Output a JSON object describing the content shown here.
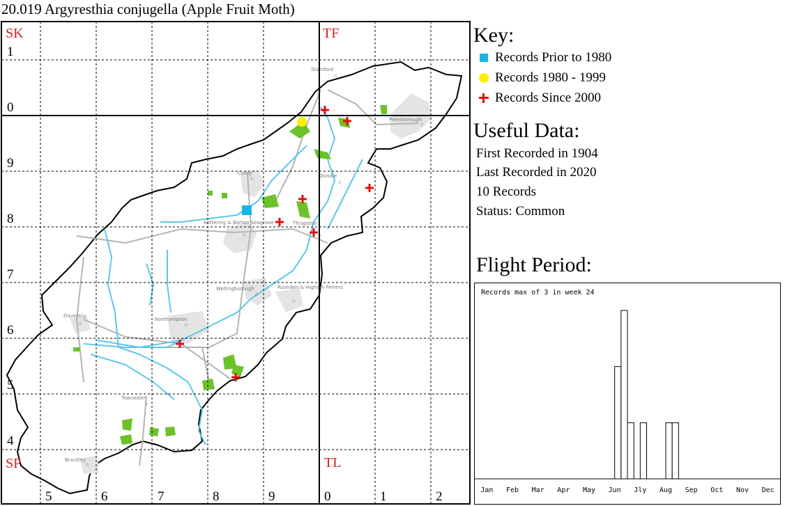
{
  "title": "20.019 Argyresthia conjugella (Apple Fruit Moth)",
  "map": {
    "grid_square_labels": [
      {
        "text": "SK",
        "color": "#cc2222"
      },
      {
        "text": "TF",
        "color": "#cc2222"
      },
      {
        "text": "SP",
        "color": "#cc2222"
      },
      {
        "text": "TL",
        "color": "#cc2222"
      }
    ],
    "northing_labels": [
      "1",
      "0",
      "9",
      "8",
      "7",
      "6",
      "5",
      "4"
    ],
    "easting_labels": [
      "5",
      "6",
      "7",
      "8",
      "9",
      "0",
      "1",
      "2"
    ],
    "places": [
      "Stamford",
      "Peterborough",
      "Corby",
      "Oundle",
      "Kettering & Barton Seagrave",
      "Thrapston",
      "Wellingborough",
      "Rushden & Higham Ferrers",
      "Daventry",
      "Northampton",
      "Towcester",
      "Brackley"
    ],
    "records": [
      {
        "period": "prior-1980",
        "symbol": "blue-square",
        "color": "#19b5e8"
      },
      {
        "period": "1980-1999",
        "symbol": "yellow-dot",
        "color": "#ffee00"
      },
      {
        "period": "since-2000",
        "symbol": "red-cross",
        "color": "#e01010"
      },
      {
        "period": "since-2000",
        "symbol": "red-cross",
        "color": "#e01010"
      },
      {
        "period": "since-2000",
        "symbol": "red-cross",
        "color": "#e01010"
      },
      {
        "period": "since-2000",
        "symbol": "red-cross",
        "color": "#e01010"
      },
      {
        "period": "since-2000",
        "symbol": "red-cross",
        "color": "#e01010"
      },
      {
        "period": "since-2000",
        "symbol": "red-cross",
        "color": "#e01010"
      },
      {
        "period": "since-2000",
        "symbol": "red-cross",
        "color": "#e01010"
      },
      {
        "period": "since-2000",
        "symbol": "red-cross",
        "color": "#e01010"
      }
    ]
  },
  "key": {
    "title": "Key:",
    "items": [
      {
        "label": "Records Prior to 1980",
        "color": "#19b5e8",
        "icon": "blue-square-icon"
      },
      {
        "label": "Records 1980 - 1999",
        "color": "#ffee00",
        "icon": "yellow-dot-icon"
      },
      {
        "label": "Records Since 2000",
        "color": "#e01010",
        "icon": "red-cross-icon"
      }
    ]
  },
  "useful_data": {
    "title": "Useful Data:",
    "first": "First Recorded in 1904",
    "last": "Last Recorded in 2020",
    "count": "10 Records",
    "status": "Status: Common"
  },
  "flight_period": {
    "title": "Flight Period:",
    "chart_data": {
      "type": "bar",
      "annotation": "Records max of 3 in week 24",
      "months": [
        "Jan",
        "Feb",
        "Mar",
        "Apr",
        "May",
        "Jun",
        "Jly",
        "Aug",
        "Sep",
        "Oct",
        "Nov",
        "Dec"
      ],
      "weeks_per_month": 4,
      "max": 3,
      "weekly_records": [
        {
          "week": 23,
          "value": 2
        },
        {
          "week": 24,
          "value": 3
        },
        {
          "week": 25,
          "value": 1
        },
        {
          "week": 27,
          "value": 1
        },
        {
          "week": 31,
          "value": 1
        },
        {
          "week": 32,
          "value": 1
        }
      ]
    }
  }
}
